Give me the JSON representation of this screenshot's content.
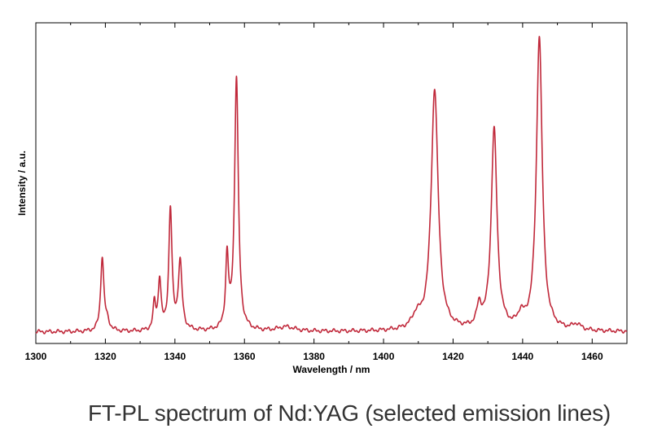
{
  "caption": "FT-PL spectrum of Nd:YAG (selected emission lines)",
  "chart_data": {
    "type": "line",
    "xlabel": "Wavelength / nm",
    "ylabel": "Intensity / a.u.",
    "xlim": [
      1300,
      1470
    ],
    "ylim": [
      0,
      1
    ],
    "x_ticks": [
      "1300",
      "1320",
      "1340",
      "1360",
      "1380",
      "1400",
      "1420",
      "1440",
      "1460"
    ],
    "y_tick_labels": "none",
    "grid": false,
    "line_color": "#c0283a",
    "baseline": 0.02,
    "peaks": [
      {
        "center": 1319.1,
        "height": 0.25,
        "width": 0.55
      },
      {
        "center": 1320.5,
        "height": 0.03,
        "width": 0.8
      },
      {
        "center": 1334.1,
        "height": 0.09,
        "width": 0.45
      },
      {
        "center": 1335.6,
        "height": 0.17,
        "width": 0.5
      },
      {
        "center": 1338.7,
        "height": 0.41,
        "width": 0.55
      },
      {
        "center": 1341.5,
        "height": 0.23,
        "width": 0.65
      },
      {
        "center": 1355.0,
        "height": 0.24,
        "width": 0.5
      },
      {
        "center": 1357.7,
        "height": 0.86,
        "width": 0.65
      },
      {
        "center": 1372.0,
        "height": 0.015,
        "width": 3.0
      },
      {
        "center": 1409.5,
        "height": 0.04,
        "width": 1.5
      },
      {
        "center": 1414.7,
        "height": 0.82,
        "width": 1.2
      },
      {
        "center": 1427.5,
        "height": 0.07,
        "width": 0.8
      },
      {
        "center": 1431.8,
        "height": 0.68,
        "width": 1.0
      },
      {
        "center": 1439.5,
        "height": 0.04,
        "width": 1.0
      },
      {
        "center": 1444.8,
        "height": 1.0,
        "width": 1.0
      },
      {
        "center": 1455.5,
        "height": 0.02,
        "width": 1.5
      }
    ]
  }
}
